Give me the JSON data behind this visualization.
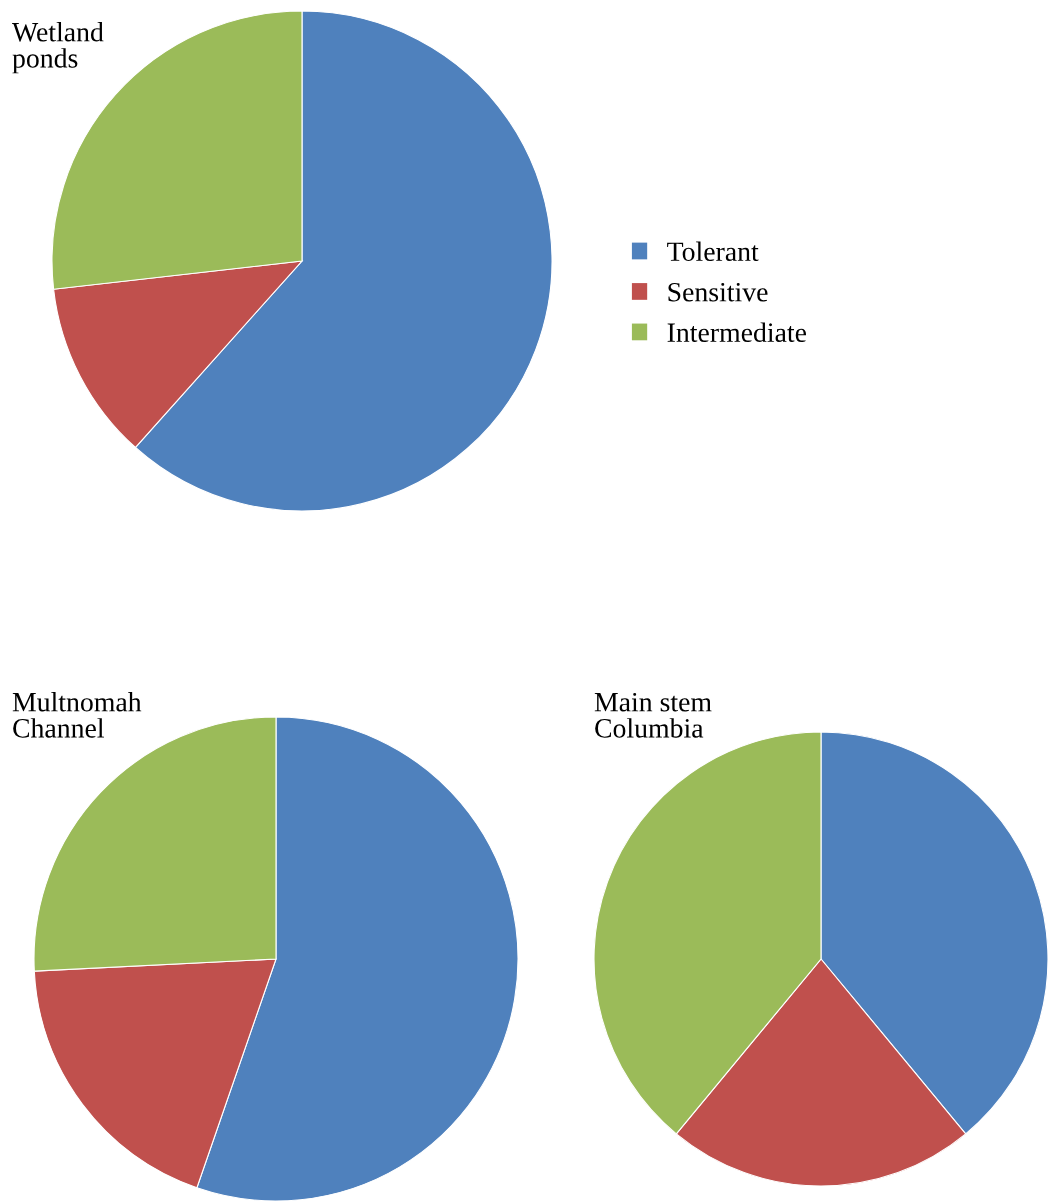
{
  "chart_data": [
    {
      "type": "pie",
      "title": "Wetland\nponds",
      "categories": [
        "Tolerant",
        "Sensitive",
        "Intermediate"
      ],
      "values": [
        61.6,
        11.6,
        26.8
      ],
      "colors": [
        "#4f81bd",
        "#c0504d",
        "#9bbb59"
      ],
      "legend": "right"
    },
    {
      "type": "pie",
      "title": "Multnomah\nChannel",
      "categories": [
        null,
        null,
        null
      ],
      "values": [
        55.3,
        18.9,
        25.8
      ],
      "colors": [
        "#4f81bd",
        "#c0504d",
        "#9bbb59"
      ]
    },
    {
      "type": "pie",
      "title": "Main stem\nColumbia",
      "categories": [
        null,
        null,
        null
      ],
      "values": [
        39.0,
        22.0,
        39.0
      ],
      "colors": [
        "#4f81bd",
        "#c0504d",
        "#9bbb59"
      ]
    }
  ]
}
